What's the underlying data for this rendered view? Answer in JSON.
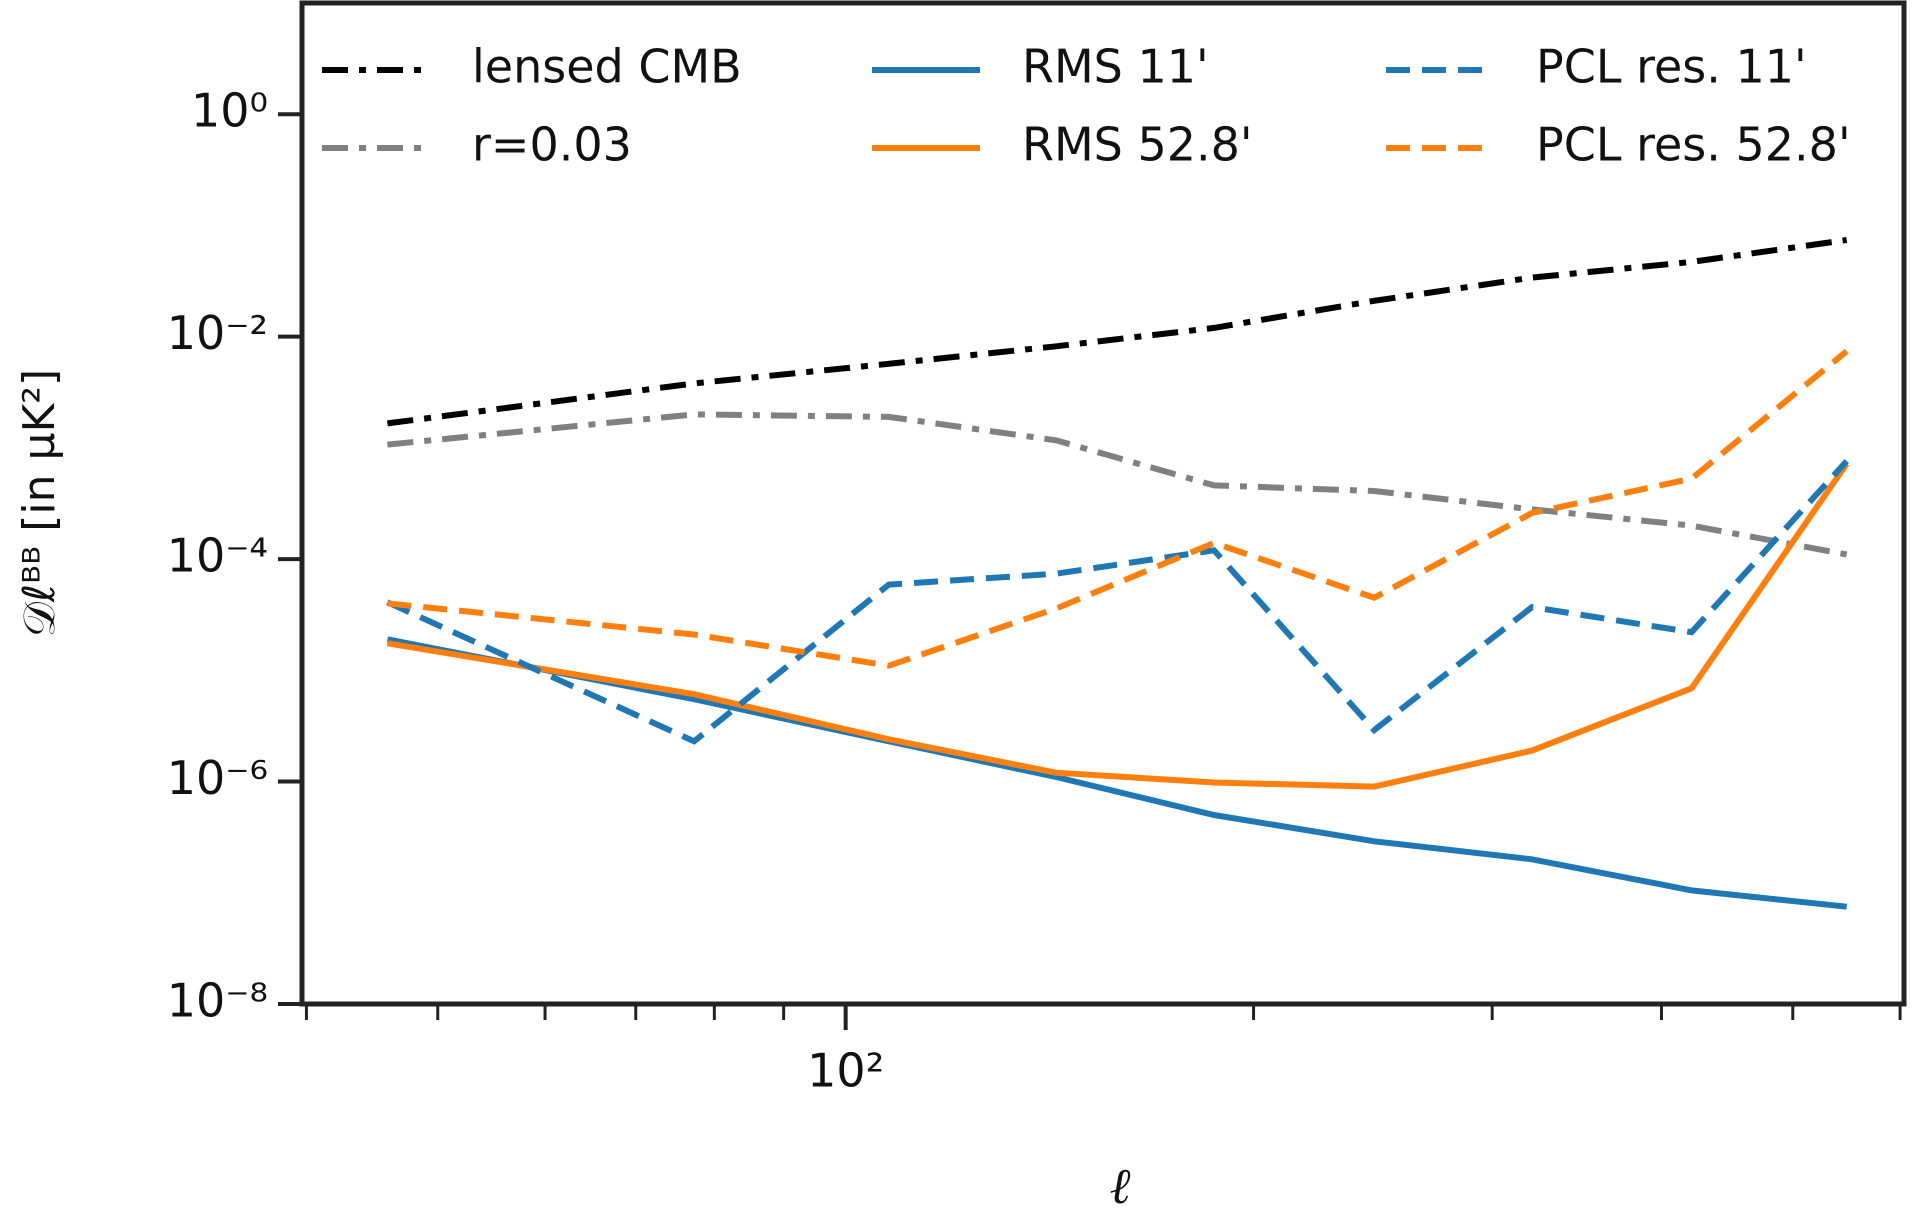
{
  "chart_data": {
    "type": "line",
    "xlabel": "ℓ",
    "ylabel": "𝒟ℓᴮᴮ [in μK²]",
    "xscale": "log",
    "yscale": "log",
    "xlim": [
      39.7,
      604
    ],
    "ylim": [
      1e-08,
      10
    ],
    "xticks": [
      {
        "value": 100,
        "label": "10²"
      }
    ],
    "xminor_ticks": [
      40,
      50,
      60,
      70,
      80,
      90,
      200,
      300,
      400,
      500,
      600
    ],
    "yticks": [
      {
        "value": 1e-08,
        "label": "10⁻⁸"
      },
      {
        "value": 1e-06,
        "label": "10⁻⁶"
      },
      {
        "value": 0.0001,
        "label": "10⁻⁴"
      },
      {
        "value": 0.01,
        "label": "10⁻²"
      },
      {
        "value": 1,
        "label": "10⁰"
      }
    ],
    "legend": "upper center",
    "x": [
      45.9,
      77.3,
      107.6,
      143,
      187,
      245.5,
      321,
      421,
      548
    ],
    "series": [
      {
        "name": "lensed CMB",
        "color": "#000000",
        "dash": "dashdot",
        "values": [
          0.00166,
          0.0038,
          0.0057,
          0.0082,
          0.012,
          0.021,
          0.034,
          0.047,
          0.074
        ]
      },
      {
        "name": "r=0.03",
        "color": "#808080",
        "dash": "dashdot",
        "values": [
          0.00107,
          0.002,
          0.0019,
          0.00117,
          0.00046,
          0.00041,
          0.00028,
          0.0002,
          0.00011
        ]
      },
      {
        "name": "RMS 11'",
        "color": "#1f77b4",
        "dash": "solid",
        "values": [
          1.9e-05,
          5.5e-06,
          2.3e-06,
          1.1e-06,
          5e-07,
          2.9e-07,
          2e-07,
          1.05e-07,
          7.5e-08
        ]
      },
      {
        "name": "RMS 52.8'",
        "color": "#ff7f0e",
        "dash": "solid",
        "values": [
          1.75e-05,
          6.1e-06,
          2.4e-06,
          1.2e-06,
          9.8e-07,
          9e-07,
          1.9e-06,
          6.9e-06,
          0.00072
        ]
      },
      {
        "name": "PCL res. 11'",
        "color": "#1f77b4",
        "dash": "dashed",
        "values": [
          4.1e-05,
          2.3e-06,
          5.9e-05,
          7.4e-05,
          0.00012,
          2.9e-06,
          3.7e-05,
          2.2e-05,
          0.00076
        ]
      },
      {
        "name": "PCL res. 52.8'",
        "color": "#ff7f0e",
        "dash": "dashed",
        "values": [
          4e-05,
          2.1e-05,
          1.1e-05,
          3.6e-05,
          0.00014,
          4.5e-05,
          0.00026,
          0.00053,
          0.0074
        ]
      }
    ]
  }
}
